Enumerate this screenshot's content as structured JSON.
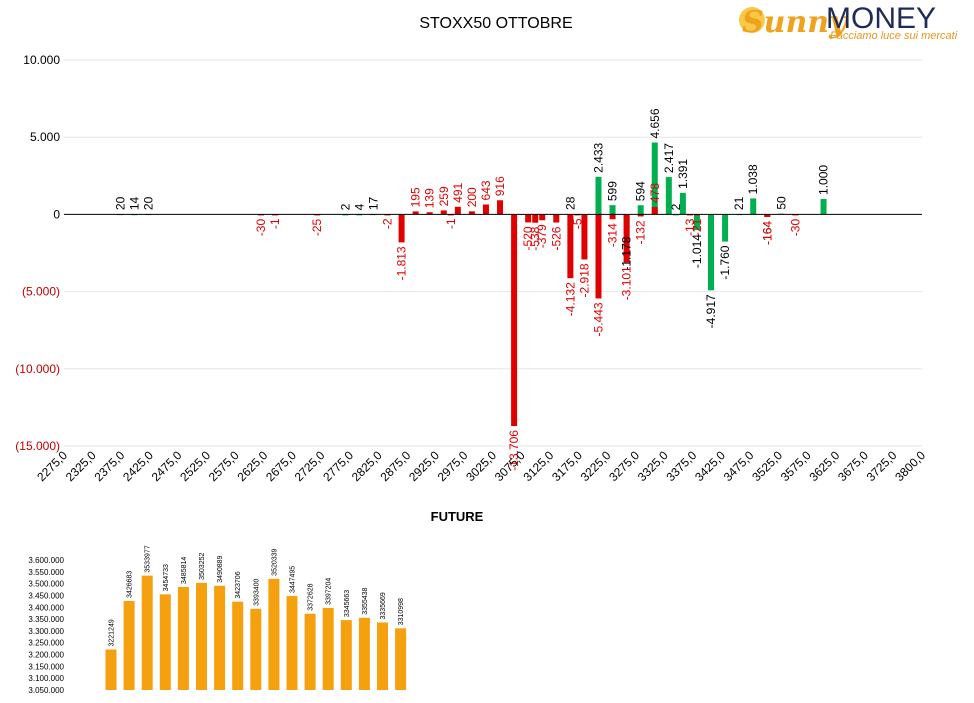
{
  "logo": {
    "brand_part1": "Sunny",
    "brand_part2": "MONEY",
    "tagline": "Facciamo luce sui mercati",
    "colors": {
      "sunny": "#f0a21c",
      "money": "#1e2a5a",
      "tagline": "#e8961c"
    }
  },
  "colors": {
    "positive": "#00b050",
    "negative": "#e00000",
    "future": "#f5a00f",
    "axis": "#000000",
    "grid": "#e6e6e6"
  },
  "chart_data": [
    {
      "type": "bar",
      "title": "STOXX50 OTTOBRE",
      "xlabel": "",
      "ylabel": "",
      "ylim": [
        -15000,
        10000
      ],
      "y_ticks": [
        10000,
        5000,
        0,
        -5000,
        -10000,
        -15000
      ],
      "y_tick_labels": [
        "10.000",
        "5.000",
        "0",
        "(5.000)",
        "(10.000)",
        "(15.000)"
      ],
      "x_tick_labels": [
        "2275,0",
        "2325,0",
        "2375,0",
        "2425,0",
        "2475,0",
        "2525,0",
        "2575,0",
        "2625,0",
        "2675,0",
        "2725,0",
        "2775,0",
        "2825,0",
        "2875,0",
        "2925,0",
        "2975,0",
        "3025,0",
        "3075,0",
        "3125,0",
        "3175,0",
        "3225,0",
        "3275,0",
        "3325,0",
        "3375,0",
        "3425,0",
        "3475,0",
        "3525,0",
        "3575,0",
        "3625,0",
        "3675,0",
        "3725,0",
        "3800,0"
      ],
      "x_range": [
        2275,
        3800
      ],
      "grid": true,
      "legend": "none",
      "series": [
        {
          "color": "positive",
          "points": [
            {
              "x": 2375,
              "y": 20,
              "label": "20"
            },
            {
              "x": 2400,
              "y": 14,
              "label": "14"
            },
            {
              "x": 2425,
              "y": 20,
              "label": "20"
            },
            {
              "x": 2775,
              "y": 2,
              "label": "2"
            },
            {
              "x": 2800,
              "y": 4,
              "label": "4"
            },
            {
              "x": 2825,
              "y": 17,
              "label": "17"
            },
            {
              "x": 3175,
              "y": 28,
              "label": "28"
            },
            {
              "x": 3225,
              "y": 2433,
              "label": "2.433"
            },
            {
              "x": 3250,
              "y": 599,
              "label": "599"
            },
            {
              "x": 3275,
              "y": -1178,
              "label": "-1.178"
            },
            {
              "x": 3300,
              "y": 594,
              "label": "594"
            },
            {
              "x": 3325,
              "y": 4656,
              "label": "4.656"
            },
            {
              "x": 3350,
              "y": 2417,
              "label": "2.417"
            },
            {
              "x": 3362.5,
              "y": 2,
              "label": "2"
            },
            {
              "x": 3375,
              "y": 1391,
              "label": "1.391"
            },
            {
              "x": 3400,
              "y": -1014,
              "label": "-1.014"
            },
            {
              "x": 3425,
              "y": -4917,
              "label": "-4.917"
            },
            {
              "x": 3450,
              "y": -1760,
              "label": "-1.760"
            },
            {
              "x": 3475,
              "y": 21,
              "label": "21"
            },
            {
              "x": 3500,
              "y": 1038,
              "label": "1.038"
            },
            {
              "x": 3525,
              "y": -164,
              "label": "-164"
            },
            {
              "x": 3550,
              "y": 50,
              "label": "50"
            },
            {
              "x": 3625,
              "y": 1000,
              "label": "1.000"
            }
          ]
        },
        {
          "color": "negative",
          "points": [
            {
              "x": 2625,
              "y": -30,
              "label": "-30"
            },
            {
              "x": 2650,
              "y": -1,
              "label": "-1"
            },
            {
              "x": 2725,
              "y": -25,
              "label": "-25"
            },
            {
              "x": 2850,
              "y": -2,
              "label": "-2"
            },
            {
              "x": 2875,
              "y": -1813,
              "label": "-1.813"
            },
            {
              "x": 2900,
              "y": 195,
              "label": "195"
            },
            {
              "x": 2925,
              "y": 139,
              "label": "139"
            },
            {
              "x": 2950,
              "y": 259,
              "label": "259"
            },
            {
              "x": 2962.5,
              "y": -1,
              "label": "-1"
            },
            {
              "x": 2975,
              "y": 491,
              "label": "491"
            },
            {
              "x": 3000,
              "y": 200,
              "label": "200"
            },
            {
              "x": 3025,
              "y": 643,
              "label": "643"
            },
            {
              "x": 3050,
              "y": 916,
              "label": "916"
            },
            {
              "x": 3075,
              "y": -13706,
              "label": "-13.706"
            },
            {
              "x": 3100,
              "y": -520,
              "label": "-520"
            },
            {
              "x": 3112.5,
              "y": -538,
              "label": "-538"
            },
            {
              "x": 3125,
              "y": -379,
              "label": "-379"
            },
            {
              "x": 3150,
              "y": -526,
              "label": "-526"
            },
            {
              "x": 3175,
              "y": -4132,
              "label": "-4.132"
            },
            {
              "x": 3187.5,
              "y": -5,
              "label": "-5"
            },
            {
              "x": 3200,
              "y": -2918,
              "label": "-2.918"
            },
            {
              "x": 3225,
              "y": -5443,
              "label": "-5.443"
            },
            {
              "x": 3250,
              "y": -314,
              "label": "-314"
            },
            {
              "x": 3275,
              "y": -3101,
              "label": "-3.101"
            },
            {
              "x": 3300,
              "y": -132,
              "label": "-132"
            },
            {
              "x": 3325,
              "y": 478,
              "label": "478"
            },
            {
              "x": 3387.5,
              "y": -13,
              "label": "-13"
            },
            {
              "x": 3400,
              "y": -21,
              "label": "-21"
            },
            {
              "x": 3525,
              "y": -164,
              "label": "-164"
            },
            {
              "x": 3575,
              "y": -30,
              "label": "-30"
            }
          ]
        }
      ]
    },
    {
      "type": "bar",
      "title": "FUTURE",
      "xlabel": "",
      "ylabel": "",
      "ylim": [
        3050000,
        3600000
      ],
      "y_tick_labels": [
        "3.600.000",
        "3.550.000",
        "3.500.000",
        "3.450.000",
        "3.400.000",
        "3.350.000",
        "3.300.000",
        "3.250.000",
        "3.200.000",
        "3.150.000",
        "3.100.000",
        "3.050.000"
      ],
      "values": [
        3221249,
        3426683,
        3533977,
        3454733,
        3485814,
        3503252,
        3490889,
        3423706,
        3393400,
        3520339,
        3447495,
        3372628,
        3397204,
        3345663,
        3355438,
        3335669,
        3310998
      ],
      "value_labels": [
        "3221249",
        "3426683",
        "3533977",
        "3454733",
        "3485814",
        "3503252",
        "3490889",
        "3423706",
        "3393400",
        "3520339",
        "3447495",
        "3372628",
        "3397204",
        "3345663",
        "3355438",
        "3335669",
        "3310998"
      ],
      "grid": false,
      "legend": "none"
    }
  ]
}
